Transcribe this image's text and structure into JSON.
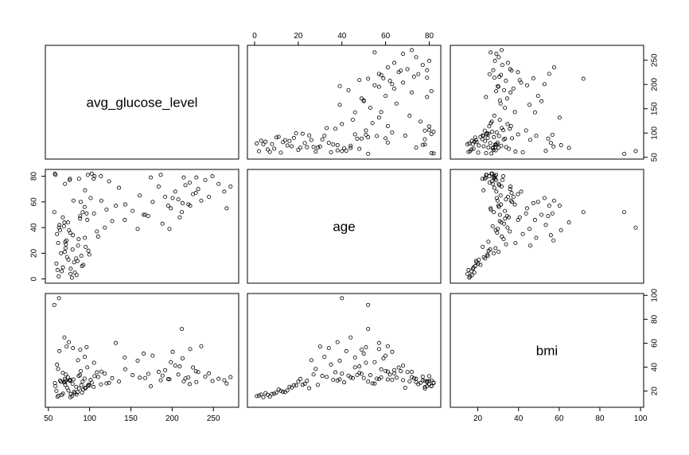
{
  "chart_data": {
    "type": "scatter",
    "subtype": "scatterplot-matrix",
    "variables": [
      "avg_glucose_level",
      "age",
      "bmi"
    ],
    "ranges": {
      "avg_glucose_level": [
        55,
        272
      ],
      "age": [
        0,
        82
      ],
      "bmi": [
        10,
        98
      ]
    },
    "ticks": {
      "avg_glucose_level": [
        50,
        100,
        150,
        200,
        250
      ],
      "age": [
        0,
        20,
        40,
        60,
        80
      ],
      "bmi": [
        20,
        40,
        60,
        80,
        100
      ]
    },
    "tick_labels": {
      "avg_glucose_level": [
        "50",
        "100",
        "150",
        "200",
        "250"
      ],
      "age": [
        "0",
        "20",
        "40",
        "60",
        "80"
      ],
      "bmi": [
        "20",
        "40",
        "60",
        "80",
        "100"
      ]
    },
    "axis_sides": {
      "avg_glucose_level": "bottom, right",
      "age": "top, left",
      "bmi": "bottom, right"
    },
    "marker": "open circle",
    "grid": false,
    "legend": "none",
    "color": "#000000",
    "points": [
      [
        228.7,
        67,
        36.6
      ],
      [
        105.9,
        80,
        32.5
      ],
      [
        171.2,
        49,
        34.4
      ],
      [
        174.1,
        79,
        24.0
      ],
      [
        186.2,
        81,
        29.0
      ],
      [
        70.1,
        74,
        27.4
      ],
      [
        94.4,
        69,
        22.8
      ],
      [
        76.2,
        78,
        28.5
      ],
      [
        58.6,
        81,
        24.1
      ],
      [
        80.4,
        61,
        29.7
      ],
      [
        120.5,
        54,
        26.4
      ],
      [
        104.9,
        78,
        23.4
      ],
      [
        214.1,
        79,
        28.2
      ],
      [
        167.4,
        50,
        30.9
      ],
      [
        191.6,
        64,
        37.5
      ],
      [
        221.3,
        75,
        25.8
      ],
      [
        89.2,
        60,
        36.8
      ],
      [
        195.2,
        57,
        30.1
      ],
      [
        77.1,
        8,
        17.6
      ],
      [
        85.3,
        14,
        19.1
      ],
      [
        62.5,
        2,
        16.2
      ],
      [
        95.1,
        25,
        22.4
      ],
      [
        110.3,
        33,
        31.8
      ],
      [
        68.9,
        41,
        27.3
      ],
      [
        88.4,
        47,
        33.4
      ],
      [
        143.2,
        58,
        38.2
      ],
      [
        76.5,
        36,
        29.5
      ],
      [
        99.6,
        19,
        24.7
      ],
      [
        82.1,
        5,
        18.3
      ],
      [
        70.4,
        29,
        25.2
      ],
      [
        231.6,
        70,
        35.9
      ],
      [
        203.8,
        68,
        41.3
      ],
      [
        216.1,
        73,
        30.6
      ],
      [
        207.5,
        62,
        33.8
      ],
      [
        240.2,
        77,
        32.1
      ],
      [
        248.9,
        80,
        28.4
      ],
      [
        198.4,
        55,
        44.2
      ],
      [
        183.7,
        72,
        36.1
      ],
      [
        225.3,
        66,
        39.7
      ],
      [
        212.6,
        59,
        47.3
      ],
      [
        59.7,
        12,
        20.2
      ],
      [
        64.2,
        38,
        28.8
      ],
      [
        73.8,
        44,
        31.5
      ],
      [
        91.5,
        52,
        27.9
      ],
      [
        101.2,
        63,
        29.3
      ],
      [
        79.3,
        23,
        26.1
      ],
      [
        86.7,
        31,
        32.7
      ],
      [
        67.5,
        48,
        35.2
      ],
      [
        93.9,
        56,
        30.4
      ],
      [
        72.6,
        17,
        22.9
      ],
      [
        118.4,
        40,
        34.6
      ],
      [
        127.3,
        45,
        30.8
      ],
      [
        135.6,
        71,
        28.1
      ],
      [
        152.1,
        53,
        33.3
      ],
      [
        160.7,
        65,
        31.2
      ],
      [
        84.2,
        3,
        17.1
      ],
      [
        78.6,
        1,
        15.8
      ],
      [
        66.1,
        6,
        16.9
      ],
      [
        90.8,
        10,
        18.7
      ],
      [
        74.3,
        15,
        20.5
      ],
      [
        57.9,
        82,
        26.7
      ],
      [
        60.5,
        35,
        42.1
      ],
      [
        61.8,
        28,
        38.5
      ],
      [
        97.2,
        46,
        39.8
      ],
      [
        105.3,
        51,
        43.7
      ],
      [
        108.8,
        37,
        35.7
      ],
      [
        114.2,
        61,
        36.3
      ],
      [
        123.6,
        76,
        26.9
      ],
      [
        69.9,
        21,
        30.2
      ],
      [
        71.2,
        27,
        33.9
      ],
      [
        229.4,
        79,
        27.6
      ],
      [
        219.7,
        58,
        31.4
      ],
      [
        244.6,
        64,
        34.8
      ],
      [
        256.3,
        74,
        30.3
      ],
      [
        263.2,
        68,
        29.1
      ],
      [
        266.1,
        55,
        26.3
      ],
      [
        270.8,
        72,
        31.7
      ],
      [
        209.2,
        48,
        40.6
      ],
      [
        196.7,
        39,
        29.8
      ],
      [
        188.3,
        43,
        32.9
      ],
      [
        102.6,
        82,
        27.1
      ],
      [
        113.7,
        80,
        25.6
      ],
      [
        97.8,
        81,
        24.3
      ],
      [
        87.1,
        78,
        22.2
      ],
      [
        75.6,
        77,
        28.9
      ],
      [
        63.4,
        42,
        53.4
      ],
      [
        88.6,
        49,
        54.6
      ],
      [
        96.3,
        51,
        56.7
      ],
      [
        79.8,
        34,
        55.9
      ],
      [
        72.1,
        30,
        57.2
      ],
      [
        69.4,
        44,
        64.8
      ],
      [
        74.9,
        38,
        60.9
      ],
      [
        57.2,
        52,
        92.0
      ],
      [
        62.8,
        40,
        97.6
      ],
      [
        211.8,
        52,
        71.9
      ],
      [
        131.7,
        57,
        60.2
      ],
      [
        142.6,
        46,
        48.1
      ],
      [
        158.2,
        39,
        45.4
      ],
      [
        165.5,
        50,
        51.3
      ],
      [
        176.4,
        60,
        49.6
      ],
      [
        200.6,
        63,
        52.8
      ],
      [
        221.9,
        57,
        55.1
      ],
      [
        235.3,
        61,
        57.5
      ],
      [
        85.9,
        26,
        45.8
      ],
      [
        94.2,
        32,
        48.7
      ],
      [
        67.7,
        9,
        17.9
      ],
      [
        81.2,
        13,
        19.4
      ],
      [
        92.3,
        11,
        21.3
      ],
      [
        61.1,
        7,
        15.4
      ],
      [
        76.8,
        4,
        14.9
      ],
      [
        83.7,
        16,
        23.6
      ],
      [
        89.9,
        18,
        24.9
      ],
      [
        65.3,
        20,
        27.8
      ],
      [
        98.5,
        22,
        25.3
      ],
      [
        70.8,
        24,
        28.7
      ]
    ]
  }
}
